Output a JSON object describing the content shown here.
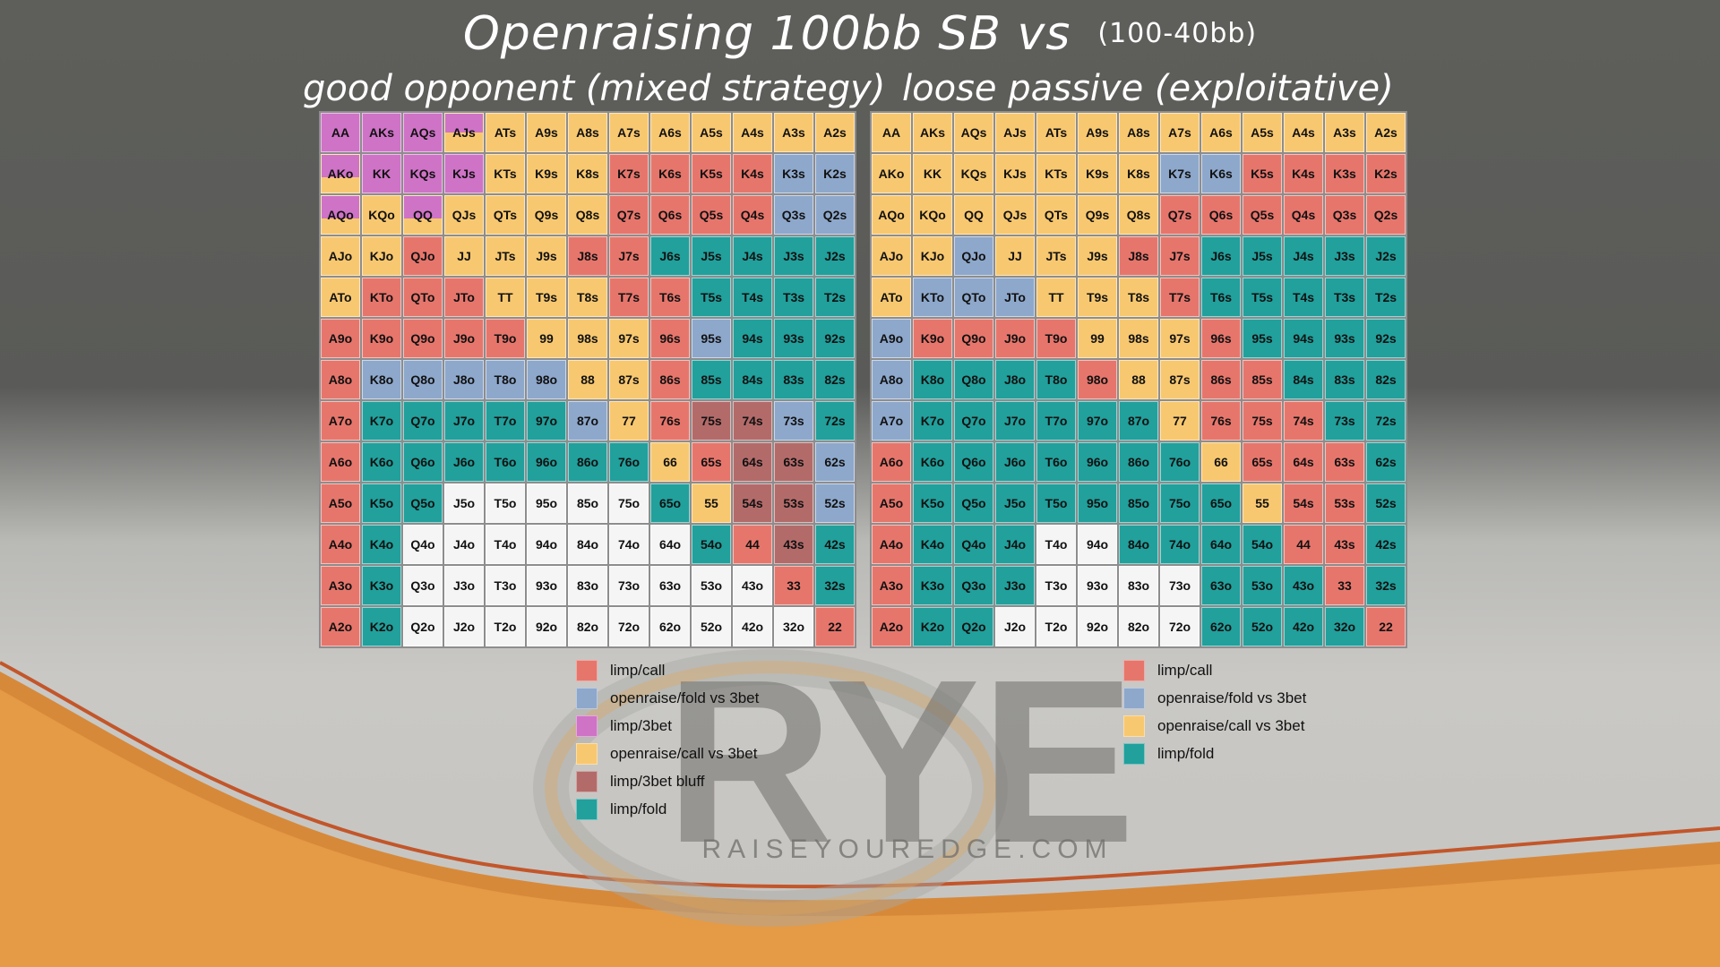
{
  "title": "Openraising 100bb SB vs",
  "title_sub": "(100-40bb)",
  "watermark": {
    "logo": "RYE",
    "url": "RAISEYOUREDGE.COM"
  },
  "colors": {
    "R": "#e6766c",
    "B": "#8ea8cc",
    "P": "#cf73c7",
    "Y": "#f8c870",
    "D": "#b36b6a",
    "G": "#21a09c",
    "W": "#f5f5f5"
  },
  "chart_data": [
    {
      "type": "table",
      "title": "good opponent (mixed strategy)",
      "rows": [
        [
          "AA",
          "AKs",
          "AQs",
          "AJs",
          "ATs",
          "A9s",
          "A8s",
          "A7s",
          "A6s",
          "A5s",
          "A4s",
          "A3s",
          "A2s"
        ],
        [
          "AKo",
          "KK",
          "KQs",
          "KJs",
          "KTs",
          "K9s",
          "K8s",
          "K7s",
          "K6s",
          "K5s",
          "K4s",
          "K3s",
          "K2s"
        ],
        [
          "AQo",
          "KQo",
          "QQ",
          "QJs",
          "QTs",
          "Q9s",
          "Q8s",
          "Q7s",
          "Q6s",
          "Q5s",
          "Q4s",
          "Q3s",
          "Q2s"
        ],
        [
          "AJo",
          "KJo",
          "QJo",
          "JJ",
          "JTs",
          "J9s",
          "J8s",
          "J7s",
          "J6s",
          "J5s",
          "J4s",
          "J3s",
          "J2s"
        ],
        [
          "ATo",
          "KTo",
          "QTo",
          "JTo",
          "TT",
          "T9s",
          "T8s",
          "T7s",
          "T6s",
          "T5s",
          "T4s",
          "T3s",
          "T2s"
        ],
        [
          "A9o",
          "K9o",
          "Q9o",
          "J9o",
          "T9o",
          "99",
          "98s",
          "97s",
          "96s",
          "95s",
          "94s",
          "93s",
          "92s"
        ],
        [
          "A8o",
          "K8o",
          "Q8o",
          "J8o",
          "T8o",
          "98o",
          "88",
          "87s",
          "86s",
          "85s",
          "84s",
          "83s",
          "82s"
        ],
        [
          "A7o",
          "K7o",
          "Q7o",
          "J7o",
          "T7o",
          "97o",
          "87o",
          "77",
          "76s",
          "75s",
          "74s",
          "73s",
          "72s"
        ],
        [
          "A6o",
          "K6o",
          "Q6o",
          "J6o",
          "T6o",
          "96o",
          "86o",
          "76o",
          "66",
          "65s",
          "64s",
          "63s",
          "62s"
        ],
        [
          "A5o",
          "K5o",
          "Q5o",
          "J5o",
          "T5o",
          "95o",
          "85o",
          "75o",
          "65o",
          "55",
          "54s",
          "53s",
          "52s"
        ],
        [
          "A4o",
          "K4o",
          "Q4o",
          "J4o",
          "T4o",
          "94o",
          "84o",
          "74o",
          "64o",
          "54o",
          "44",
          "43s",
          "42s"
        ],
        [
          "A3o",
          "K3o",
          "Q3o",
          "J3o",
          "T3o",
          "93o",
          "83o",
          "73o",
          "63o",
          "53o",
          "43o",
          "33",
          "32s"
        ],
        [
          "A2o",
          "K2o",
          "Q2o",
          "J2o",
          "T2o",
          "92o",
          "82o",
          "72o",
          "62o",
          "52o",
          "42o",
          "32o",
          "22"
        ]
      ],
      "actions": [
        [
          "P",
          "P",
          "P",
          "P:0.5,Y:0.5",
          "Y",
          "Y",
          "Y",
          "Y",
          "Y",
          "Y",
          "Y",
          "Y",
          "Y"
        ],
        [
          "P:0.6,Y:0.4",
          "P",
          "P",
          "P",
          "Y",
          "Y",
          "Y",
          "R",
          "R",
          "R",
          "R",
          "B",
          "B"
        ],
        [
          "P:0.6,Y:0.4",
          "Y",
          "P:0.6,Y:0.4",
          "Y",
          "Y",
          "Y",
          "Y",
          "R",
          "R",
          "R",
          "R",
          "B",
          "B"
        ],
        [
          "Y",
          "Y",
          "R",
          "Y",
          "Y",
          "Y",
          "R",
          "R",
          "G",
          "G",
          "G",
          "G",
          "G"
        ],
        [
          "Y",
          "R",
          "R",
          "R",
          "Y",
          "Y",
          "Y",
          "R",
          "R",
          "G",
          "G",
          "G",
          "G"
        ],
        [
          "R",
          "R",
          "R",
          "R",
          "R",
          "Y",
          "Y",
          "Y",
          "R",
          "B",
          "G",
          "G",
          "G"
        ],
        [
          "R",
          "B",
          "B",
          "B",
          "B",
          "B",
          "Y",
          "Y",
          "R",
          "G",
          "G",
          "G",
          "G"
        ],
        [
          "R",
          "G",
          "G",
          "G",
          "G",
          "G",
          "B",
          "Y",
          "R",
          "D",
          "D",
          "B",
          "G"
        ],
        [
          "R",
          "G",
          "G",
          "G",
          "G",
          "G",
          "G",
          "G",
          "Y",
          "R",
          "D",
          "D",
          "B"
        ],
        [
          "R",
          "G",
          "G",
          "W",
          "W",
          "W",
          "W",
          "W",
          "G",
          "Y",
          "D",
          "D",
          "B"
        ],
        [
          "R",
          "G",
          "W",
          "W",
          "W",
          "W",
          "W",
          "W",
          "W",
          "G",
          "R",
          "D",
          "G"
        ],
        [
          "R",
          "G",
          "W",
          "W",
          "W",
          "W",
          "W",
          "W",
          "W",
          "W",
          "W",
          "R",
          "G"
        ],
        [
          "R",
          "G",
          "W",
          "W",
          "W",
          "W",
          "W",
          "W",
          "W",
          "W",
          "W",
          "W",
          "R"
        ]
      ]
    },
    {
      "type": "table",
      "title": "loose passive (exploitative)",
      "rows": [
        [
          "AA",
          "AKs",
          "AQs",
          "AJs",
          "ATs",
          "A9s",
          "A8s",
          "A7s",
          "A6s",
          "A5s",
          "A4s",
          "A3s",
          "A2s"
        ],
        [
          "AKo",
          "KK",
          "KQs",
          "KJs",
          "KTs",
          "K9s",
          "K8s",
          "K7s",
          "K6s",
          "K5s",
          "K4s",
          "K3s",
          "K2s"
        ],
        [
          "AQo",
          "KQo",
          "QQ",
          "QJs",
          "QTs",
          "Q9s",
          "Q8s",
          "Q7s",
          "Q6s",
          "Q5s",
          "Q4s",
          "Q3s",
          "Q2s"
        ],
        [
          "AJo",
          "KJo",
          "QJo",
          "JJ",
          "JTs",
          "J9s",
          "J8s",
          "J7s",
          "J6s",
          "J5s",
          "J4s",
          "J3s",
          "J2s"
        ],
        [
          "ATo",
          "KTo",
          "QTo",
          "JTo",
          "TT",
          "T9s",
          "T8s",
          "T7s",
          "T6s",
          "T5s",
          "T4s",
          "T3s",
          "T2s"
        ],
        [
          "A9o",
          "K9o",
          "Q9o",
          "J9o",
          "T9o",
          "99",
          "98s",
          "97s",
          "96s",
          "95s",
          "94s",
          "93s",
          "92s"
        ],
        [
          "A8o",
          "K8o",
          "Q8o",
          "J8o",
          "T8o",
          "98o",
          "88",
          "87s",
          "86s",
          "85s",
          "84s",
          "83s",
          "82s"
        ],
        [
          "A7o",
          "K7o",
          "Q7o",
          "J7o",
          "T7o",
          "97o",
          "87o",
          "77",
          "76s",
          "75s",
          "74s",
          "73s",
          "72s"
        ],
        [
          "A6o",
          "K6o",
          "Q6o",
          "J6o",
          "T6o",
          "96o",
          "86o",
          "76o",
          "66",
          "65s",
          "64s",
          "63s",
          "62s"
        ],
        [
          "A5o",
          "K5o",
          "Q5o",
          "J5o",
          "T5o",
          "95o",
          "85o",
          "75o",
          "65o",
          "55",
          "54s",
          "53s",
          "52s"
        ],
        [
          "A4o",
          "K4o",
          "Q4o",
          "J4o",
          "T4o",
          "94o",
          "84o",
          "74o",
          "64o",
          "54o",
          "44",
          "43s",
          "42s"
        ],
        [
          "A3o",
          "K3o",
          "Q3o",
          "J3o",
          "T3o",
          "93o",
          "83o",
          "73o",
          "63o",
          "53o",
          "43o",
          "33",
          "32s"
        ],
        [
          "A2o",
          "K2o",
          "Q2o",
          "J2o",
          "T2o",
          "92o",
          "82o",
          "72o",
          "62o",
          "52o",
          "42o",
          "32o",
          "22"
        ]
      ],
      "actions": [
        [
          "Y",
          "Y",
          "Y",
          "Y",
          "Y",
          "Y",
          "Y",
          "Y",
          "Y",
          "Y",
          "Y",
          "Y",
          "Y"
        ],
        [
          "Y",
          "Y",
          "Y",
          "Y",
          "Y",
          "Y",
          "Y",
          "B",
          "B",
          "R",
          "R",
          "R",
          "R"
        ],
        [
          "Y",
          "Y",
          "Y",
          "Y",
          "Y",
          "Y",
          "Y",
          "R",
          "R",
          "R",
          "R",
          "R",
          "R"
        ],
        [
          "Y",
          "Y",
          "B",
          "Y",
          "Y",
          "Y",
          "R",
          "R",
          "G",
          "G",
          "G",
          "G",
          "G"
        ],
        [
          "Y",
          "B",
          "B",
          "B",
          "Y",
          "Y",
          "Y",
          "R",
          "G",
          "G",
          "G",
          "G",
          "G"
        ],
        [
          "B",
          "R",
          "R",
          "R",
          "R",
          "Y",
          "Y",
          "Y",
          "R",
          "G",
          "G",
          "G",
          "G"
        ],
        [
          "B",
          "G",
          "G",
          "G",
          "G",
          "R",
          "Y",
          "Y",
          "R",
          "R",
          "G",
          "G",
          "G"
        ],
        [
          "B",
          "G",
          "G",
          "G",
          "G",
          "G",
          "G",
          "Y",
          "R",
          "R",
          "R",
          "G",
          "G"
        ],
        [
          "R",
          "G",
          "G",
          "G",
          "G",
          "G",
          "G",
          "G",
          "Y",
          "R",
          "R",
          "R",
          "G"
        ],
        [
          "R",
          "G",
          "G",
          "G",
          "G",
          "G",
          "G",
          "G",
          "G",
          "Y",
          "R",
          "R",
          "G"
        ],
        [
          "R",
          "G",
          "G",
          "G",
          "W",
          "W",
          "G",
          "G",
          "G",
          "G",
          "R",
          "R",
          "G"
        ],
        [
          "R",
          "G",
          "G",
          "G",
          "W",
          "W",
          "W",
          "W",
          "G",
          "G",
          "G",
          "R",
          "G"
        ],
        [
          "R",
          "G",
          "G",
          "W",
          "W",
          "W",
          "W",
          "W",
          "G",
          "G",
          "G",
          "G",
          "R"
        ]
      ]
    }
  ],
  "legend_left": [
    {
      "key": "R",
      "label": "limp/call"
    },
    {
      "key": "B",
      "label": "openraise/fold vs 3bet"
    },
    {
      "key": "P",
      "label": "limp/3bet"
    },
    {
      "key": "Y",
      "label": "openraise/call vs 3bet"
    },
    {
      "key": "D",
      "label": "limp/3bet bluff"
    },
    {
      "key": "G",
      "label": "limp/fold"
    }
  ],
  "legend_right": [
    {
      "key": "R",
      "label": "limp/call"
    },
    {
      "key": "B",
      "label": "openraise/fold vs 3bet"
    },
    {
      "key": "Y",
      "label": "openraise/call vs 3bet"
    },
    {
      "key": "G",
      "label": "limp/fold"
    }
  ]
}
